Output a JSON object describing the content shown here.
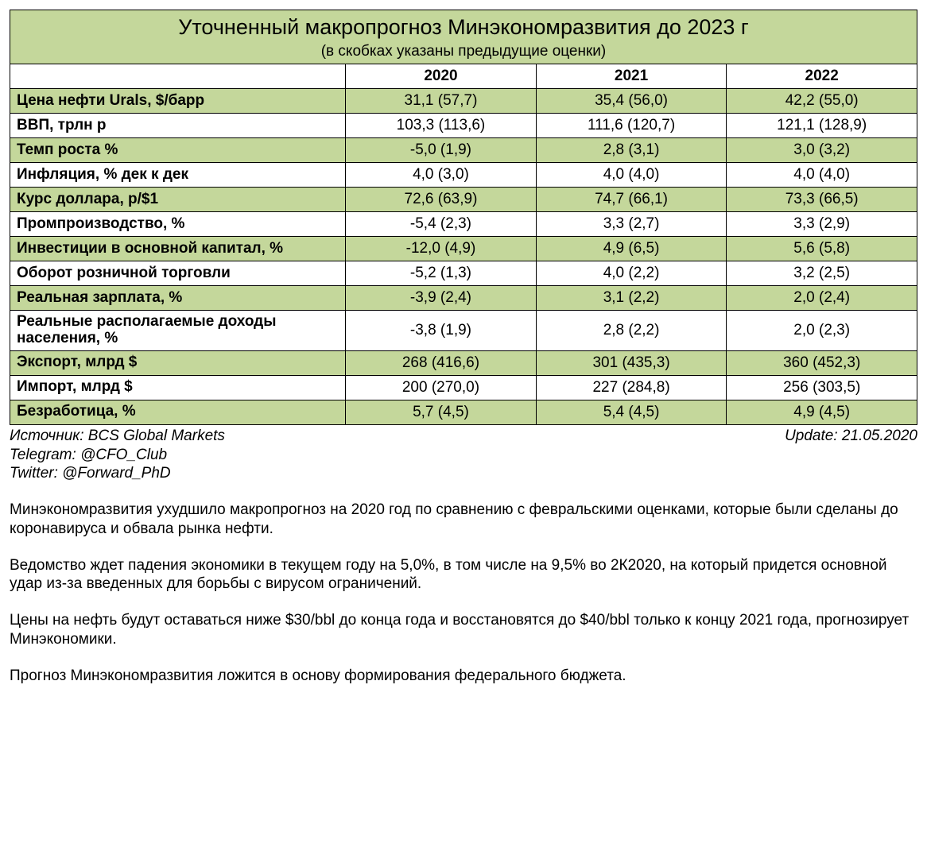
{
  "colors": {
    "header_bg": "#c4d79b",
    "row_alt_bg": "#c4d79b",
    "border": "#000000",
    "background": "#ffffff",
    "text": "#000000"
  },
  "typography": {
    "family": "Arial",
    "title_size_pt": 20,
    "subtitle_size_pt": 14,
    "body_size_pt": 14
  },
  "header": {
    "title": "Уточненный макропрогноз Минэкономразвития до 2023 г",
    "subtitle": "(в скобках указаны предыдущие оценки)"
  },
  "columns": [
    {
      "key": "label",
      "title": ""
    },
    {
      "key": "y2020",
      "title": "2020"
    },
    {
      "key": "y2021",
      "title": "2021"
    },
    {
      "key": "y2022",
      "title": "2022"
    }
  ],
  "rows": [
    {
      "alt": true,
      "label": "Цена нефти Urals, $/барр",
      "y2020": "31,1 (57,7)",
      "y2021": "35,4 (56,0)",
      "y2022": "42,2 (55,0)"
    },
    {
      "alt": false,
      "label": "ВВП, трлн р",
      "y2020": "103,3 (113,6)",
      "y2021": "111,6 (120,7)",
      "y2022": "121,1 (128,9)"
    },
    {
      "alt": true,
      "label": "Темп роста %",
      "y2020": "-5,0 (1,9)",
      "y2021": "2,8 (3,1)",
      "y2022": "3,0 (3,2)"
    },
    {
      "alt": false,
      "label": "Инфляция, % дек к дек",
      "y2020": "4,0 (3,0)",
      "y2021": "4,0 (4,0)",
      "y2022": "4,0 (4,0)"
    },
    {
      "alt": true,
      "label": "Курс доллара, р/$1",
      "y2020": "72,6 (63,9)",
      "y2021": "74,7 (66,1)",
      "y2022": "73,3 (66,5)"
    },
    {
      "alt": false,
      "label": "Промпроизводство, %",
      "y2020": "-5,4 (2,3)",
      "y2021": "3,3 (2,7)",
      "y2022": "3,3 (2,9)"
    },
    {
      "alt": true,
      "label": "Инвестиции в основной капитал, %",
      "y2020": "-12,0 (4,9)",
      "y2021": "4,9 (6,5)",
      "y2022": "5,6 (5,8)"
    },
    {
      "alt": false,
      "label": "Оборот розничной торговли",
      "y2020": "-5,2 (1,3)",
      "y2021": "4,0 (2,2)",
      "y2022": "3,2 (2,5)"
    },
    {
      "alt": true,
      "label": "Реальная зарплата, %",
      "y2020": "-3,9 (2,4)",
      "y2021": "3,1 (2,2)",
      "y2022": "2,0 (2,4)"
    },
    {
      "alt": false,
      "label": "Реальные располагаемые доходы населения, %",
      "y2020": "-3,8 (1,9)",
      "y2021": "2,8 (2,2)",
      "y2022": "2,0 (2,3)"
    },
    {
      "alt": true,
      "label": "Экспорт, млрд $",
      "y2020": "268 (416,6)",
      "y2021": "301 (435,3)",
      "y2022": "360 (452,3)"
    },
    {
      "alt": false,
      "label": "Импорт, млрд $",
      "y2020": "200 (270,0)",
      "y2021": "227 (284,8)",
      "y2022": "256 (303,5)"
    },
    {
      "alt": true,
      "label": "Безработица, %",
      "y2020": "5,7 (4,5)",
      "y2021": "5,4 (4,5)",
      "y2022": "4,9 (4,5)"
    }
  ],
  "footer": {
    "source": "Источник: BCS Global Markets",
    "telegram": "Telegram: @CFO_Club",
    "twitter": "Twitter: @Forward_PhD",
    "update": "Update: 21.05.2020"
  },
  "paragraphs": [
    "Минэкономразвития ухудшило макропрогноз на 2020 год по сравнению с февральскими оценками, которые были сделаны до коронавируса и обвала рынка нефти.",
    "Ведомство ждет падения экономики в текущем году на 5,0%, в том числе на 9,5% во 2К2020, на который придется основной удар из-за введенных для борьбы с вирусом ограничений.",
    "Цены на нефть будут оставаться ниже $30/bbl до конца года и восстановятся до $40/bbl только к концу 2021 года, прогнозирует Минэкономики.",
    "Прогноз Минэкономразвития ложится в основу формирования федерального бюджета."
  ]
}
